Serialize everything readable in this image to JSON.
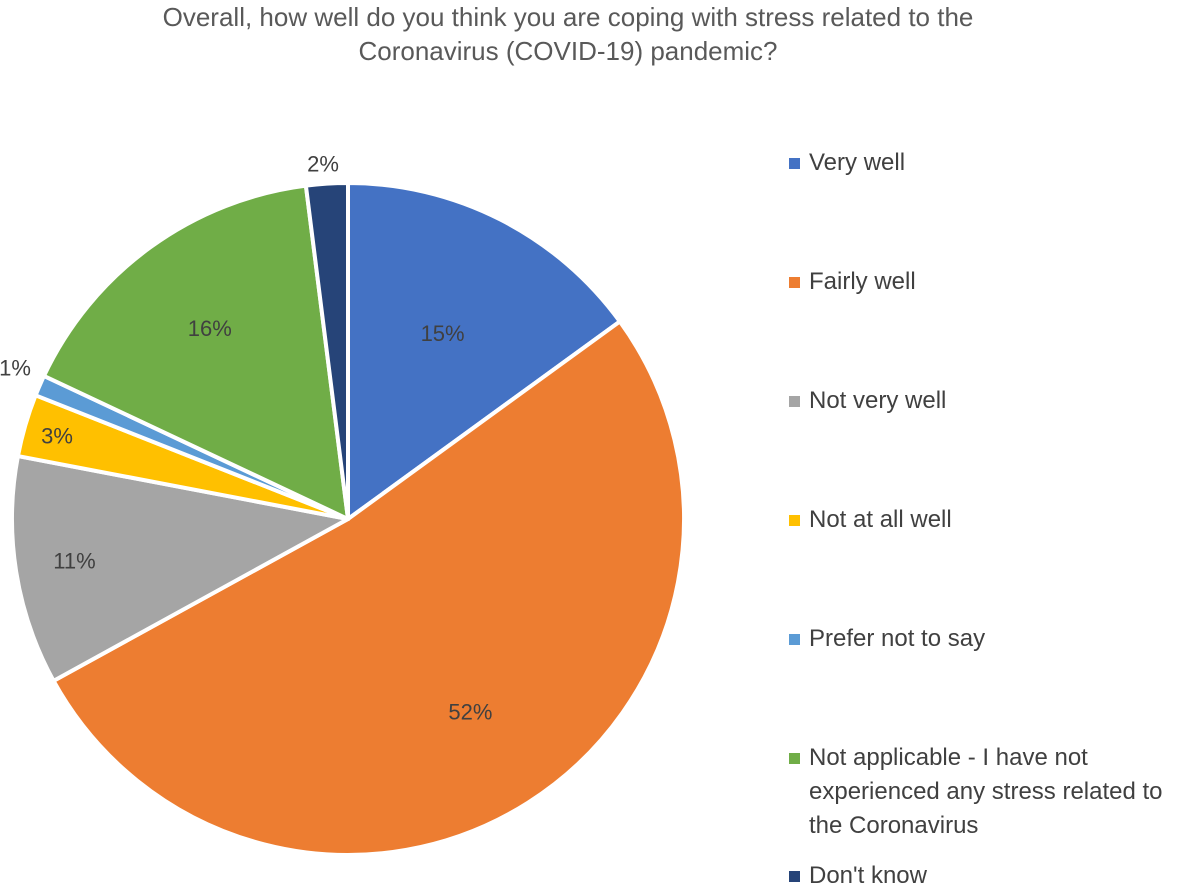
{
  "chart_data": {
    "type": "pie",
    "title_lines": [
      "Overall, how well do you think you are coping with stress related to the",
      "Coronavirus (COVID-19) pandemic?"
    ],
    "slices": [
      {
        "name": "Very well",
        "value": 15,
        "label": "15%",
        "color": "#4472C4"
      },
      {
        "name": "Fairly well",
        "value": 52,
        "label": "52%",
        "color": "#ED7D31"
      },
      {
        "name": "Not very well",
        "value": 11,
        "label": "11%",
        "color": "#A5A5A5"
      },
      {
        "name": "Not at all well",
        "value": 3,
        "label": "3%",
        "color": "#FFC000"
      },
      {
        "name": "Prefer not to say",
        "value": 1,
        "label": "1%",
        "color": "#5B9BD5"
      },
      {
        "name": "Not applicable - I have not experienced any stress related to the Coronavirus",
        "value": 16,
        "label": "16%",
        "color": "#70AD47"
      },
      {
        "name": "Don't know",
        "value": 2,
        "label": "2%",
        "color": "#264478"
      }
    ],
    "legend": {
      "position": "right",
      "items": [
        {
          "lines": [
            "Very well"
          ],
          "color": "#4472C4"
        },
        {
          "lines": [
            "Fairly well"
          ],
          "color": "#ED7D31"
        },
        {
          "lines": [
            "Not very well"
          ],
          "color": "#A5A5A5"
        },
        {
          "lines": [
            "Not at all well"
          ],
          "color": "#FFC000"
        },
        {
          "lines": [
            "Prefer not to say"
          ],
          "color": "#5B9BD5"
        },
        {
          "lines": [
            "Not applicable - I have not",
            "experienced any stress related to",
            "the Coronavirus"
          ],
          "color": "#70AD47"
        },
        {
          "lines": [
            "Don't know"
          ],
          "color": "#264478"
        }
      ]
    }
  }
}
